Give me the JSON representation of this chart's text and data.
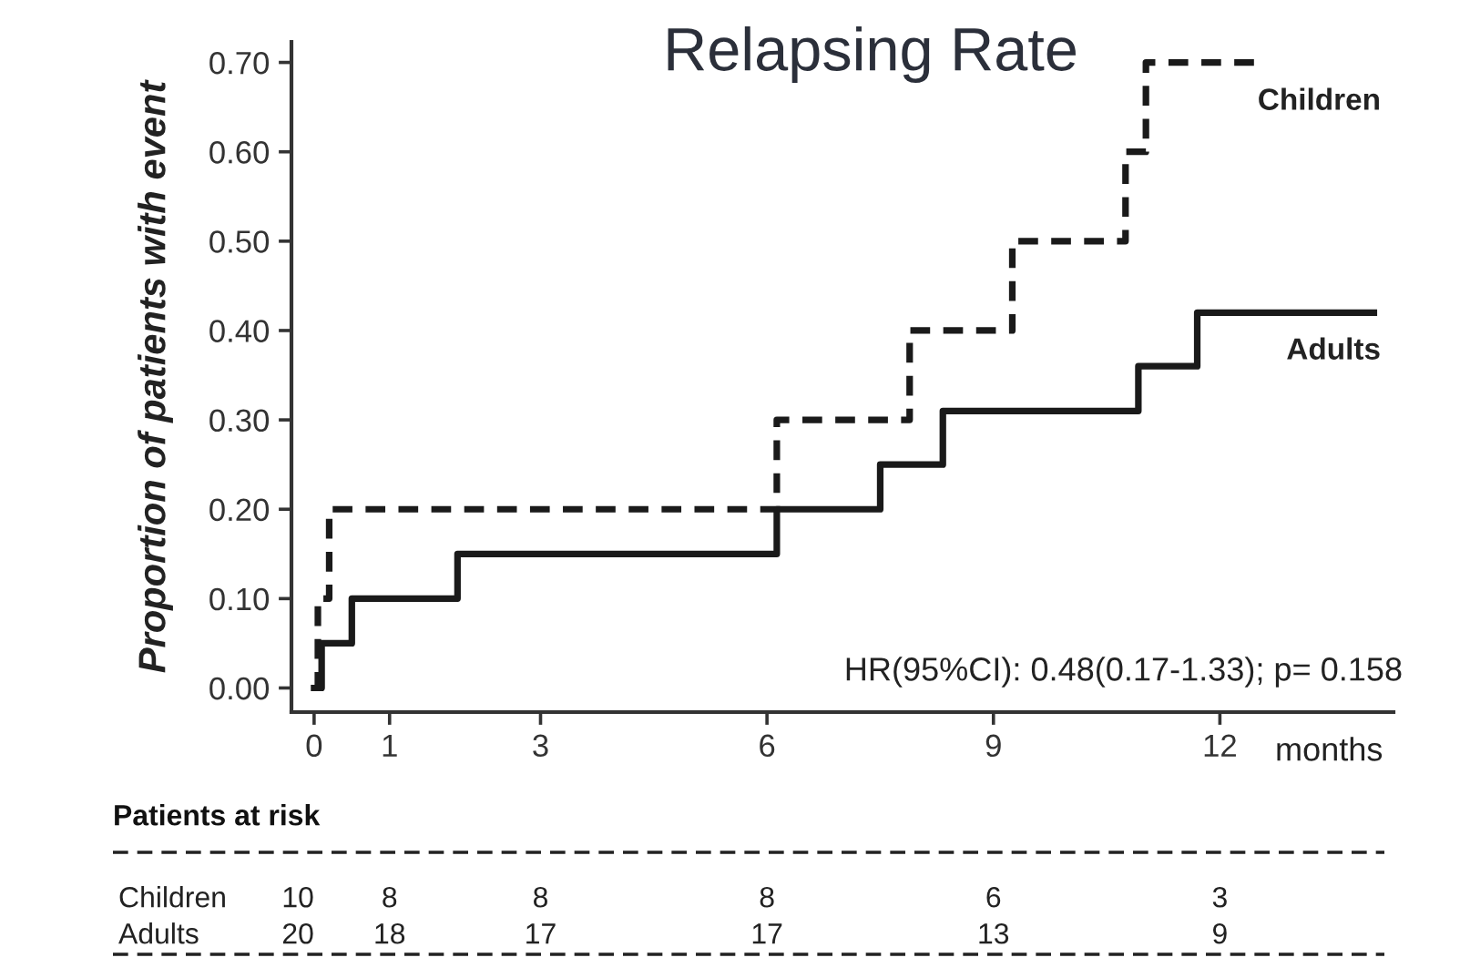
{
  "chart_data": {
    "type": "step",
    "title": "Relapsing Rate",
    "xlabel": "months",
    "ylabel": "Proportion of patients with event",
    "series": [
      {
        "name": "Children",
        "color": "#1a1a1a",
        "line_style": "dashed",
        "x": [
          0,
          0.05,
          0.2,
          6.13,
          7.89,
          9.25,
          10.75,
          11.02,
          12.49
        ],
        "values": [
          0,
          0.1,
          0.2,
          0.3,
          0.4,
          0.5,
          0.6,
          0.7,
          0.7
        ]
      },
      {
        "name": "Adults",
        "color": "#1a1a1a",
        "line_style": "solid",
        "x": [
          0,
          0.1,
          0.5,
          1.9,
          6.13,
          7.5,
          8.33,
          10.92,
          11.7,
          14.04
        ],
        "values": [
          0,
          0.05,
          0.1,
          0.15,
          0.2,
          0.25,
          0.31,
          0.36,
          0.42,
          0.42
        ]
      }
    ],
    "xlim": [
      -0.3,
      14.3
    ],
    "ylim": [
      -0.027,
      0.723
    ],
    "xticks": [
      0,
      1,
      3,
      6,
      9,
      12
    ],
    "yticks": [
      {
        "value": 0,
        "label": "0.00"
      },
      {
        "value": 0.1,
        "label": "0.10"
      },
      {
        "value": 0.2,
        "label": "0.20"
      },
      {
        "value": 0.3,
        "label": "0.30"
      },
      {
        "value": 0.4,
        "label": "0.40"
      },
      {
        "value": 0.5,
        "label": "0.50"
      },
      {
        "value": 0.6,
        "label": "0.60"
      },
      {
        "value": 0.7,
        "label": "0.70"
      }
    ],
    "grid": false,
    "legend": false,
    "marker": "none",
    "annotations": [
      "HR(95%CI): 0.48(0.17-1.33); p= 0.158",
      "Patients at risk",
      "Children",
      "10",
      "8",
      "8",
      "8",
      "6",
      "3",
      "Adults",
      "20",
      "18",
      "17",
      "17",
      "13",
      "9"
    ]
  }
}
